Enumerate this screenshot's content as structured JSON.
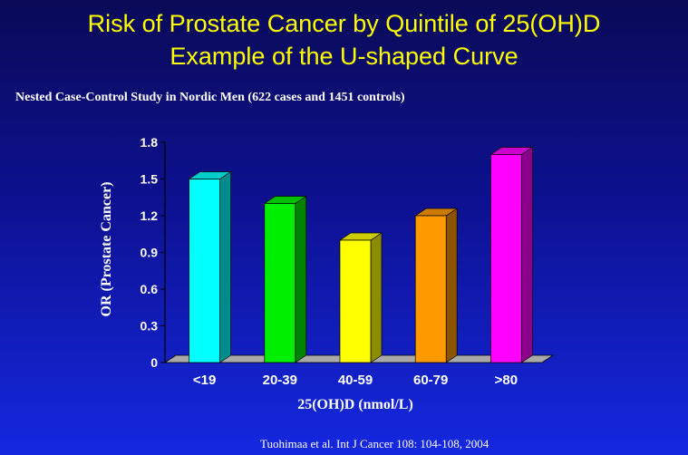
{
  "slide": {
    "title_line1": "Risk of Prostate Cancer by Quintile of 25(OH)D",
    "title_line2": "Example of the U-shaped Curve",
    "subtitle": "Nested Case-Control Study in Nordic Men (622 cases and 1451 controls)",
    "citation": "Tuohimaa et al. Int J Cancer 108: 104-108, 2004"
  },
  "colors": {
    "title": "#ffff00",
    "text": "#ffffff",
    "floor": "#a9a9a9"
  },
  "chart_data": {
    "type": "bar",
    "style": "3d",
    "title": "Risk of Prostate Cancer by Quintile of 25(OH)D",
    "xlabel": "25(OH)D (nmol/L)",
    "ylabel": "OR (Prostate Cancer)",
    "categories": [
      "<19",
      "20-39",
      "40-59",
      "60-79",
      ">80"
    ],
    "values": [
      1.5,
      1.3,
      1.0,
      1.2,
      1.7
    ],
    "bar_colors": [
      "#00ffff",
      "#00ee00",
      "#ffff00",
      "#ff9900",
      "#ff00ff"
    ],
    "ylim": [
      0,
      1.8
    ],
    "yticks": [
      "0",
      "0.3",
      "0.6",
      "0.9",
      "1.2",
      "1.5",
      "1.8"
    ],
    "grid": false,
    "legend": "none"
  }
}
